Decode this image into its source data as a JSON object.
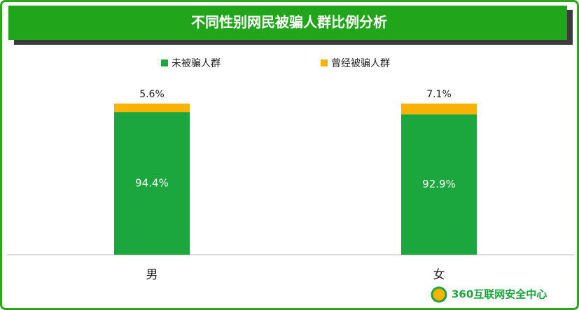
{
  "chart_data": {
    "type": "stacked_bar",
    "title": "不同性别网民被骗人群比例分析",
    "categories": [
      "男",
      "女"
    ],
    "series": [
      {
        "name": "未被骗人群",
        "color": "#1ba63e",
        "values": [
          94.4,
          92.9
        ],
        "value_labels": [
          "94.4%",
          "92.9%"
        ]
      },
      {
        "name": "曾经被骗人群",
        "color": "#f9b200",
        "values": [
          5.6,
          7.1
        ],
        "value_labels": [
          "5.6%",
          "7.1%"
        ]
      }
    ],
    "legend": "top",
    "footer": "360互联网安全中心"
  }
}
